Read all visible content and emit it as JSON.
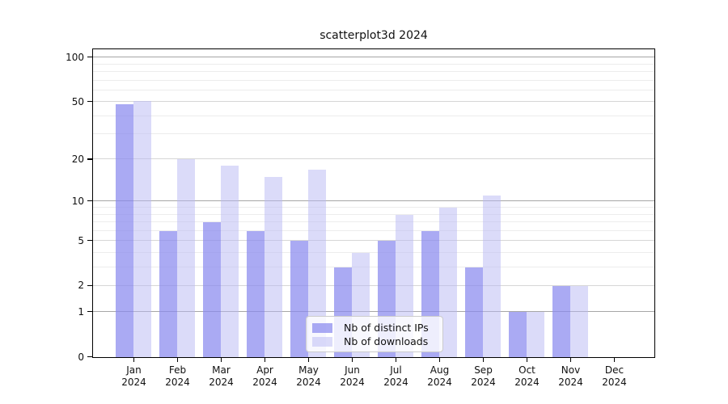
{
  "title": "scatterplot3d 2024",
  "chart_data": {
    "type": "bar",
    "title": "scatterplot3d 2024",
    "categories": [
      "Jan 2024",
      "Feb 2024",
      "Mar 2024",
      "Apr 2024",
      "May 2024",
      "Jun 2024",
      "Jul 2024",
      "Aug 2024",
      "Sep 2024",
      "Oct 2024",
      "Nov 2024",
      "Dec 2024"
    ],
    "series": [
      {
        "name": "Nb of distinct IPs",
        "color": "rgba(137,137,238,0.72)",
        "approx_hex": "#abaaf3",
        "values": [
          48,
          6,
          7,
          6,
          5,
          3,
          5,
          6,
          3,
          1,
          2,
          0
        ]
      },
      {
        "name": "Nb of downloads",
        "color": "rgba(183,183,243,0.5)",
        "approx_hex": "#dbdbf9",
        "values": [
          51,
          20,
          18,
          15,
          17,
          4,
          8,
          9,
          11,
          1,
          2,
          0
        ]
      }
    ],
    "xlabel": "",
    "ylabel": "",
    "y_scale": "log10(1+v)",
    "y_major_ticks": [
      0,
      1,
      2,
      5,
      10,
      20,
      50,
      100
    ],
    "y_minor_ticks": [
      3,
      4,
      6,
      7,
      8,
      9,
      30,
      40,
      60,
      70,
      80,
      90
    ],
    "ylim": [
      0,
      112
    ],
    "grid": "horizontal",
    "legend_position": "inside lower center"
  },
  "colors": {
    "grid_power10": "#a6a6a6",
    "grid_major": "#d6d6d6",
    "grid_minor": "#ececec",
    "spine": "#000000"
  }
}
